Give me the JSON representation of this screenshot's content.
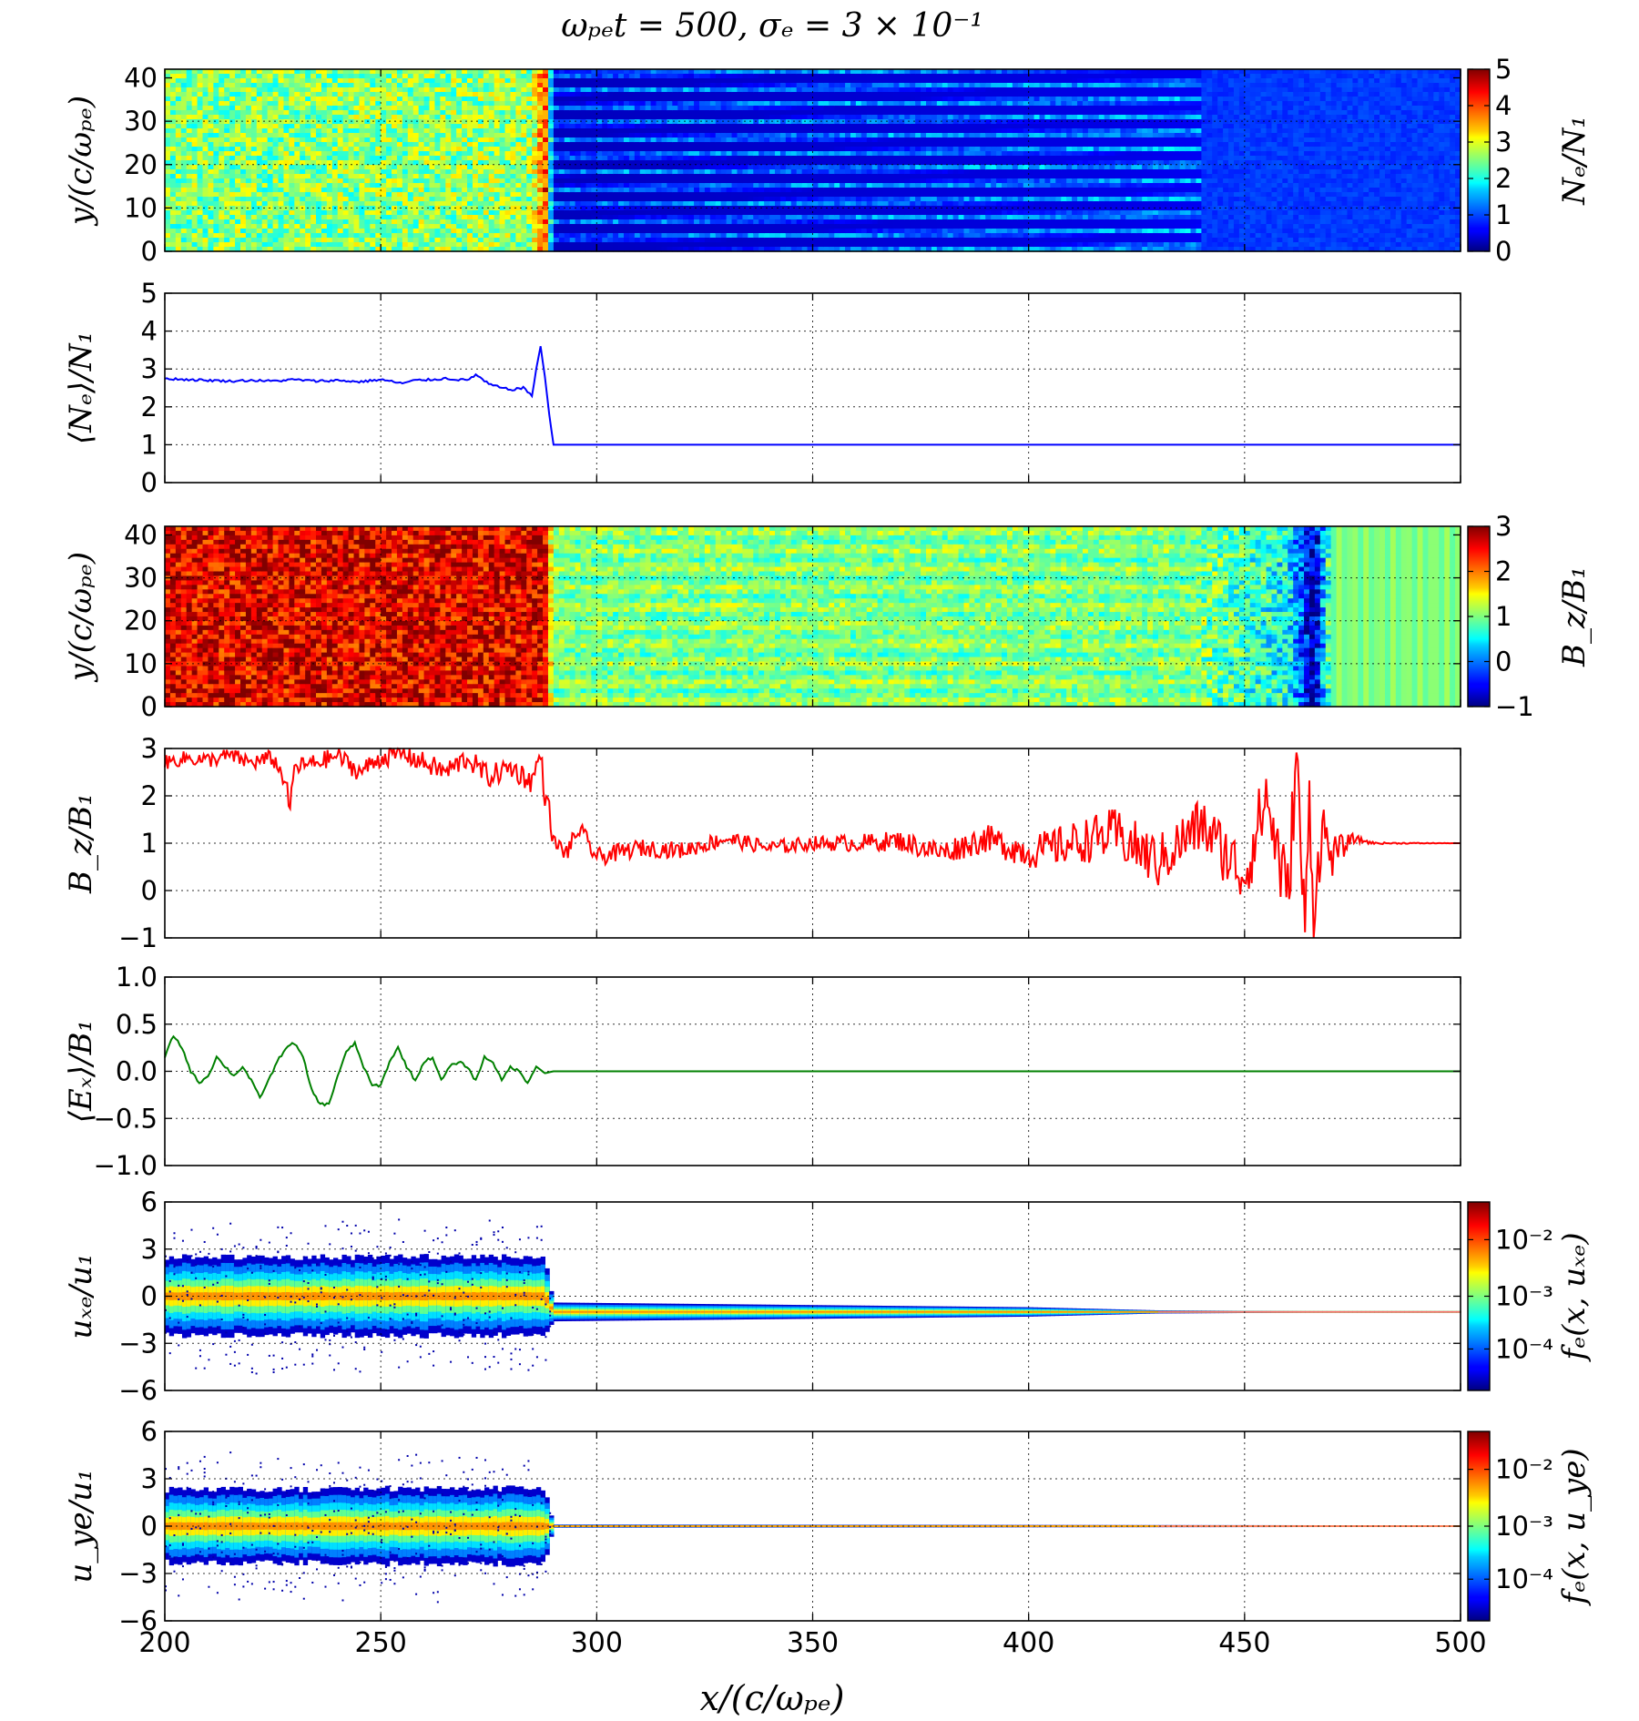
{
  "title": "ωₚₑt = 500, σₑ = 3 × 10⁻¹",
  "colors": {
    "axis": "#000000",
    "grid": "#000000",
    "blue": "#0000ff",
    "red": "#ff0000",
    "green": "#008000",
    "background": "#ffffff"
  },
  "shared_x": {
    "label": "x/(c/ωₚₑ)",
    "xlim": [
      200,
      500
    ],
    "ticks": [
      "200",
      "250",
      "300",
      "350",
      "400",
      "450",
      "500"
    ]
  },
  "chart_data": [
    {
      "id": "ne_map",
      "type": "heatmap",
      "ylabel": "y/(c/ωₚₑ)",
      "ylim": [
        0,
        42
      ],
      "yticks": [
        "0",
        "10",
        "20",
        "30",
        "40"
      ],
      "colorbar": {
        "label": "Nₑ/N₁",
        "range": [
          0,
          5
        ],
        "ticks": [
          "0",
          "1",
          "2",
          "3",
          "4",
          "5"
        ]
      },
      "description_of_field": {
        "x_profile": [
          [
            200,
            2.5
          ],
          [
            285,
            2.6
          ],
          [
            288,
            4.0
          ],
          [
            290,
            0.6
          ],
          [
            420,
            0.8
          ],
          [
            450,
            0.9
          ],
          [
            500,
            0.9
          ]
        ],
        "filaments_region": [
          290,
          440
        ]
      },
      "grid": true
    },
    {
      "id": "ne_mean",
      "type": "line",
      "ylabel": "⟨Nₑ⟩/N₁",
      "ylim": [
        0,
        5
      ],
      "yticks": [
        "0",
        "1",
        "2",
        "3",
        "4",
        "5"
      ],
      "grid": true,
      "series": [
        {
          "color": "#0000ff",
          "x": [
            200,
            205,
            210,
            215,
            220,
            225,
            230,
            235,
            240,
            245,
            250,
            255,
            258,
            262,
            265,
            270,
            272,
            275,
            278,
            280,
            283,
            285,
            286,
            287,
            288,
            289,
            290,
            295,
            300,
            350,
            400,
            450,
            500
          ],
          "y": [
            2.75,
            2.72,
            2.7,
            2.68,
            2.7,
            2.68,
            2.72,
            2.68,
            2.7,
            2.66,
            2.72,
            2.62,
            2.7,
            2.72,
            2.75,
            2.7,
            2.85,
            2.6,
            2.5,
            2.45,
            2.5,
            2.3,
            3.0,
            3.6,
            2.8,
            1.8,
            1.0,
            1.0,
            1.0,
            1.0,
            1.0,
            1.0,
            1.0
          ]
        }
      ]
    },
    {
      "id": "bz_map",
      "type": "heatmap",
      "ylabel": "y/(c/ωₚₑ)",
      "ylim": [
        0,
        42
      ],
      "yticks": [
        "0",
        "10",
        "20",
        "30",
        "40"
      ],
      "colorbar": {
        "label": "B_z/B₁",
        "range": [
          -1,
          3
        ],
        "ticks": [
          "−1",
          "0",
          "1",
          "2",
          "3"
        ]
      },
      "description_of_field": {
        "x_profile": [
          [
            200,
            2.6
          ],
          [
            288,
            2.6
          ],
          [
            290,
            1.0
          ],
          [
            440,
            1.0
          ],
          [
            460,
            0.5
          ],
          [
            466,
            -0.8
          ],
          [
            470,
            1.0
          ],
          [
            500,
            1.0
          ]
        ]
      },
      "grid": true
    },
    {
      "id": "bz_line",
      "type": "line",
      "ylabel": "B_z/B₁",
      "ylim": [
        -1,
        3
      ],
      "yticks": [
        "−1",
        "0",
        "1",
        "2",
        "3"
      ],
      "grid": true,
      "series": [
        {
          "color": "#ff0000",
          "x": [
            200,
            205,
            210,
            215,
            220,
            225,
            228,
            229,
            230,
            235,
            240,
            245,
            250,
            255,
            260,
            265,
            270,
            275,
            280,
            285,
            287,
            288,
            289,
            290,
            293,
            296,
            300,
            310,
            320,
            330,
            340,
            350,
            360,
            370,
            380,
            390,
            400,
            410,
            420,
            430,
            440,
            450,
            455,
            460,
            462,
            464,
            465,
            466,
            468,
            470,
            475,
            480,
            490,
            500
          ],
          "y": [
            2.7,
            2.8,
            2.75,
            2.85,
            2.7,
            2.8,
            2.3,
            1.7,
            2.6,
            2.7,
            2.85,
            2.5,
            2.8,
            2.9,
            2.7,
            2.5,
            2.8,
            2.4,
            2.6,
            2.3,
            2.9,
            2.0,
            1.7,
            1.0,
            0.8,
            1.3,
            0.7,
            0.9,
            0.85,
            1.1,
            0.9,
            1.0,
            1.0,
            1.05,
            0.8,
            1.1,
            0.8,
            1.0,
            1.2,
            0.6,
            1.4,
            0.3,
            2.0,
            -0.2,
            2.9,
            -1.0,
            2.0,
            -0.5,
            1.4,
            0.7,
            1.1,
            1.0,
            1.0,
            1.0
          ],
          "noise_envelope": [
            [
              200,
              0.15
            ],
            [
              285,
              0.25
            ],
            [
              290,
              0.2
            ],
            [
              350,
              0.15
            ],
            [
              380,
              0.25
            ],
            [
              400,
              0.35
            ],
            [
              420,
              0.55
            ],
            [
              440,
              0.6
            ],
            [
              450,
              0.7
            ],
            [
              460,
              0.9
            ],
            [
              468,
              0.6
            ],
            [
              475,
              0.1
            ],
            [
              480,
              0.02
            ],
            [
              500,
              0.0
            ]
          ]
        }
      ]
    },
    {
      "id": "ex_mean",
      "type": "line",
      "ylabel": "⟨Eₓ⟩/B₁",
      "ylim": [
        -1.0,
        1.0
      ],
      "yticks": [
        "−1.0",
        "−0.5",
        "0.0",
        "0.5",
        "1.0"
      ],
      "grid": true,
      "series": [
        {
          "color": "#008000",
          "x": [
            200,
            202,
            204,
            206,
            208,
            210,
            212,
            214,
            216,
            218,
            220,
            222,
            224,
            226,
            228,
            230,
            232,
            234,
            236,
            238,
            240,
            242,
            244,
            246,
            248,
            250,
            252,
            254,
            256,
            258,
            260,
            262,
            264,
            266,
            268,
            270,
            272,
            274,
            276,
            278,
            280,
            282,
            284,
            286,
            288,
            290,
            300,
            350,
            400,
            450,
            500
          ],
          "y": [
            0.15,
            0.38,
            0.25,
            0.0,
            -0.12,
            -0.05,
            0.15,
            0.05,
            -0.05,
            0.05,
            -0.1,
            -0.28,
            -0.1,
            0.1,
            0.25,
            0.3,
            0.15,
            -0.2,
            -0.35,
            -0.35,
            -0.05,
            0.2,
            0.3,
            0.05,
            -0.15,
            -0.15,
            0.1,
            0.25,
            0.05,
            -0.1,
            0.1,
            0.15,
            -0.1,
            0.05,
            0.1,
            0.05,
            -0.1,
            0.15,
            0.1,
            -0.1,
            0.05,
            0.0,
            -0.12,
            0.05,
            -0.02,
            0.0,
            0.0,
            0.0,
            0.0,
            0.0,
            0.0
          ]
        }
      ]
    },
    {
      "id": "uxe_phase",
      "type": "heatmap",
      "ylabel": "uₓₑ/u₁",
      "ylim": [
        -6,
        6
      ],
      "yticks": [
        "−6",
        "−3",
        "0",
        "3",
        "6"
      ],
      "colorbar": {
        "label": "fₑ(x, uₓₑ)",
        "scale": "log",
        "ticks": [
          "10⁻⁴",
          "10⁻³",
          "10⁻²"
        ]
      },
      "grid": true,
      "description_of_field": {
        "core_center": [
          [
            200,
            0
          ],
          [
            288,
            0
          ],
          [
            290,
            -1
          ],
          [
            500,
            -1
          ]
        ],
        "spread": [
          [
            200,
            2.5
          ],
          [
            288,
            2.5
          ],
          [
            290,
            0.6
          ],
          [
            400,
            0.3
          ],
          [
            430,
            0.1
          ],
          [
            500,
            0.0
          ]
        ]
      }
    },
    {
      "id": "uye_phase",
      "type": "heatmap",
      "ylabel": "u_ye/u₁",
      "ylim": [
        -6,
        6
      ],
      "yticks": [
        "−6",
        "−3",
        "0",
        "3",
        "6"
      ],
      "colorbar": {
        "label": "fₑ(x, u_ye)",
        "scale": "log",
        "ticks": [
          "10⁻⁴",
          "10⁻³",
          "10⁻²"
        ]
      },
      "grid": true,
      "description_of_field": {
        "core_center": [
          [
            200,
            0
          ],
          [
            500,
            0
          ]
        ],
        "spread": [
          [
            200,
            2.3
          ],
          [
            288,
            2.4
          ],
          [
            290,
            0.1
          ],
          [
            500,
            0.05
          ]
        ]
      }
    }
  ]
}
